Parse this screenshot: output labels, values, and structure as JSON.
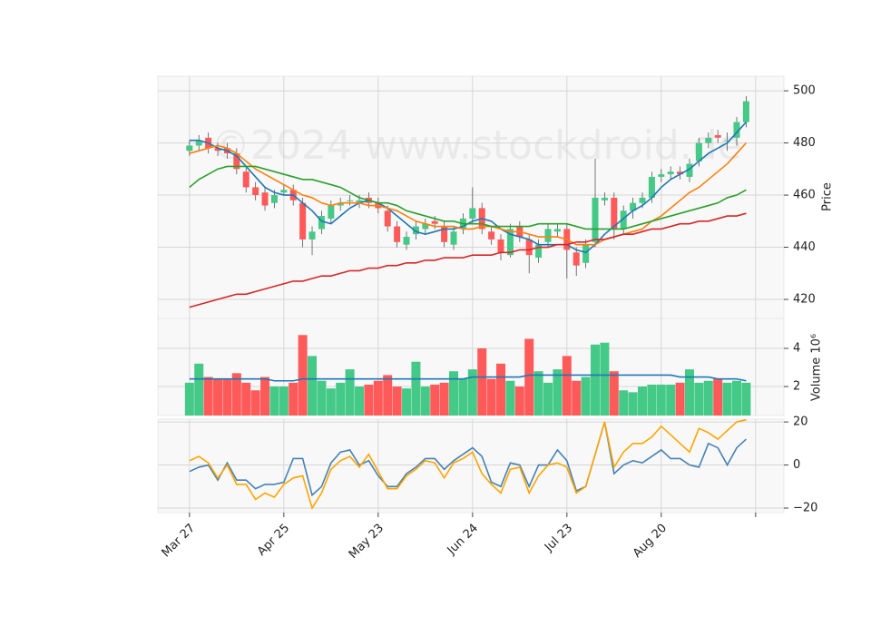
{
  "chart_data": {
    "type": "candlestick",
    "watermark": "©2024 www.stockdroid.de",
    "ylabel": "Price",
    "up_color": "#44c987",
    "down_color": "#ff5a5a",
    "grid": true,
    "xlim": [
      -6.7,
      126
    ],
    "ylim": [
      412.7,
      505.6
    ],
    "yticks": [
      420,
      440,
      460,
      480,
      500
    ],
    "xticks": [
      {
        "value": 0,
        "label": "Mar 27"
      },
      {
        "value": 20,
        "label": "Apr 25"
      },
      {
        "value": 40,
        "label": "May 23"
      },
      {
        "value": 60,
        "label": "Jun 24"
      },
      {
        "value": 80,
        "label": "Jul 23"
      },
      {
        "value": 100,
        "label": "Aug 20"
      },
      {
        "value": 120,
        "label": null
      }
    ],
    "x": [
      0,
      2,
      4,
      6,
      8,
      10,
      12,
      14,
      16,
      18,
      20,
      22,
      24,
      26,
      28,
      30,
      32,
      34,
      36,
      38,
      40,
      42,
      44,
      46,
      48,
      50,
      52,
      54,
      56,
      58,
      60,
      62,
      64,
      66,
      68,
      70,
      72,
      74,
      76,
      78,
      80,
      82,
      84,
      86,
      88,
      90,
      92,
      94,
      96,
      98,
      100,
      102,
      104,
      106,
      108,
      110,
      112,
      114,
      116,
      118
    ],
    "open": [
      477,
      479,
      482,
      478,
      478,
      476,
      469,
      463,
      461,
      457,
      461,
      462,
      457,
      443,
      447,
      451,
      456,
      458,
      457,
      459,
      457,
      454,
      448,
      441,
      445,
      447,
      450,
      448,
      441,
      447,
      451,
      455,
      446,
      443,
      437,
      448,
      443,
      436,
      442,
      446,
      447,
      438,
      434,
      442,
      458,
      459,
      447,
      454,
      457,
      459,
      467,
      468,
      469,
      467,
      473,
      480,
      483,
      481,
      482,
      488
    ],
    "high": [
      481,
      483,
      484,
      480,
      480,
      478,
      471,
      465,
      463,
      462,
      464,
      464,
      459,
      448,
      454,
      458,
      459,
      460,
      460,
      461,
      459,
      456,
      450,
      446,
      450,
      451,
      452,
      450,
      448,
      453,
      463,
      457,
      448,
      445,
      449,
      450,
      445,
      443,
      449,
      449,
      449,
      440,
      443,
      474,
      461,
      461,
      456,
      459,
      461,
      469,
      470,
      471,
      471,
      474,
      482,
      484,
      485,
      484,
      490,
      498
    ],
    "low": [
      475,
      477,
      476,
      475,
      474,
      468,
      461,
      458,
      454,
      455,
      460,
      456,
      440,
      437,
      445,
      449,
      454,
      456,
      455,
      455,
      453,
      446,
      440,
      439,
      443,
      445,
      447,
      440,
      439,
      445,
      449,
      445,
      441,
      435,
      436,
      442,
      430,
      434,
      440,
      444,
      428,
      429,
      432,
      440,
      456,
      443,
      445,
      451,
      455,
      457,
      465,
      466,
      466,
      465,
      471,
      478,
      480,
      477,
      479,
      486
    ],
    "close": [
      479,
      481,
      478,
      477,
      476,
      470,
      463,
      460,
      456,
      460,
      462,
      458,
      443,
      446,
      452,
      456,
      457,
      458,
      458,
      457,
      455,
      448,
      442,
      444,
      448,
      449,
      449,
      442,
      446,
      451,
      455,
      447,
      443,
      438,
      447,
      444,
      437,
      441,
      447,
      447,
      439,
      433,
      441,
      459,
      459,
      447,
      454,
      457,
      459,
      467,
      468,
      469,
      468,
      472,
      480,
      482,
      482,
      481,
      488,
      496
    ],
    "series": [
      {
        "color": "#1f77b4",
        "values": [
          481,
          481,
          480,
          478,
          477,
          475,
          471,
          467,
          463,
          461,
          460,
          460,
          457,
          454,
          450,
          449,
          452,
          455,
          457,
          458,
          457,
          455,
          452,
          449,
          446,
          445,
          446,
          447,
          447,
          448,
          450,
          451,
          450,
          447,
          445,
          444,
          443,
          441,
          441,
          441,
          441,
          439,
          438,
          441,
          445,
          448,
          451,
          454,
          456,
          459,
          463,
          466,
          468,
          470,
          473,
          476,
          478,
          480,
          484,
          488
        ]
      },
      {
        "color": "#ff7f0e",
        "values": [
          476,
          477,
          478,
          479,
          478,
          476,
          473,
          470,
          468,
          466,
          464,
          462,
          460,
          459,
          457,
          456,
          457,
          457,
          457,
          456,
          456,
          455,
          454,
          452,
          450,
          449,
          448,
          448,
          448,
          447,
          447,
          448,
          448,
          447,
          446,
          446,
          445,
          444,
          444,
          444,
          443,
          441,
          441,
          441,
          443,
          444,
          445,
          446,
          447,
          450,
          452,
          455,
          458,
          461,
          463,
          466,
          469,
          472,
          476,
          480
        ]
      },
      {
        "color": "#2ca02c",
        "values": [
          463,
          466,
          468,
          470,
          471,
          471,
          471,
          471,
          470,
          469,
          468,
          467,
          466,
          466,
          465,
          464,
          463,
          461,
          459,
          458,
          457,
          457,
          456,
          454,
          453,
          452,
          451,
          450,
          450,
          449,
          449,
          449,
          448,
          448,
          448,
          448,
          448,
          449,
          449,
          449,
          449,
          448,
          447,
          447,
          447,
          447,
          447,
          448,
          449,
          450,
          451,
          452,
          453,
          454,
          455,
          456,
          457,
          459,
          460,
          462
        ]
      },
      {
        "color": "#d62728",
        "values": [
          417,
          418,
          419,
          420,
          421,
          422,
          422,
          423,
          424,
          425,
          426,
          427,
          427,
          428,
          429,
          429,
          430,
          431,
          431,
          432,
          432,
          433,
          433,
          434,
          434,
          435,
          435,
          436,
          436,
          436,
          437,
          437,
          437,
          438,
          438,
          439,
          439,
          440,
          440,
          441,
          441,
          442,
          442,
          443,
          443,
          444,
          445,
          445,
          446,
          447,
          447,
          448,
          449,
          449,
          450,
          450,
          451,
          452,
          452,
          453
        ]
      }
    ],
    "volume": {
      "ylabel": "Volume  10⁶",
      "ylim": [
        0.48,
        5.57
      ],
      "yticks": [
        2,
        4
      ],
      "values": [
        2.2,
        3.2,
        2.5,
        2.4,
        2.4,
        2.7,
        2.2,
        1.8,
        2.5,
        2.0,
        2.0,
        2.2,
        4.7,
        3.6,
        2.3,
        1.9,
        2.2,
        2.9,
        2.0,
        2.1,
        2.3,
        2.6,
        2.0,
        1.9,
        3.3,
        2.0,
        2.1,
        2.2,
        2.8,
        2.4,
        2.9,
        4.0,
        2.4,
        3.2,
        2.3,
        2.0,
        4.5,
        2.8,
        2.2,
        2.9,
        3.6,
        2.3,
        2.5,
        4.2,
        4.3,
        2.8,
        1.8,
        1.7,
        2.0,
        2.1,
        2.1,
        2.1,
        2.2,
        2.9,
        2.2,
        2.3,
        2.4,
        2.2,
        2.3,
        2.2
      ],
      "ma": {
        "color": "#1f77b4",
        "values": [
          2.4,
          2.4,
          2.4,
          2.4,
          2.4,
          2.4,
          2.4,
          2.4,
          2.4,
          2.3,
          2.3,
          2.3,
          2.4,
          2.4,
          2.4,
          2.4,
          2.4,
          2.4,
          2.4,
          2.4,
          2.4,
          2.4,
          2.4,
          2.4,
          2.4,
          2.4,
          2.4,
          2.4,
          2.4,
          2.4,
          2.5,
          2.5,
          2.5,
          2.5,
          2.5,
          2.5,
          2.6,
          2.6,
          2.6,
          2.6,
          2.6,
          2.6,
          2.6,
          2.6,
          2.6,
          2.6,
          2.6,
          2.6,
          2.6,
          2.6,
          2.6,
          2.6,
          2.5,
          2.5,
          2.5,
          2.5,
          2.4,
          2.4,
          2.4,
          2.3
        ]
      }
    },
    "oscillator": {
      "ylim": [
        -22.1,
        21.3
      ],
      "yticks": [
        {
          "value": -20,
          "label": "−20"
        },
        0,
        20
      ],
      "series": [
        {
          "color": "#4682b4",
          "values": [
            -3,
            -1,
            0,
            -7,
            1,
            -7,
            -7,
            -11,
            -9,
            -9,
            -8,
            3,
            3,
            -14,
            -10,
            1,
            6,
            7,
            0,
            2,
            -5,
            -10,
            -10,
            -4,
            -1,
            3,
            3,
            -2,
            2,
            5,
            8,
            4,
            -8,
            -10,
            1,
            0,
            -10,
            0,
            0,
            7,
            2,
            -12,
            -10,
            5,
            20,
            -4,
            0,
            2,
            1,
            4,
            7,
            3,
            3,
            0,
            -1,
            10,
            8,
            0,
            8,
            12
          ]
        },
        {
          "color": "#ffa500",
          "values": [
            2,
            4,
            1,
            -6,
            0,
            -9,
            -9,
            -16,
            -13,
            -15,
            -9,
            -6,
            -5,
            -20,
            -13,
            -2,
            2,
            4,
            -1,
            5,
            -3,
            -11,
            -11,
            -5,
            -2,
            2,
            1,
            -6,
            1,
            3,
            6,
            -4,
            -9,
            -13,
            -2,
            -1,
            -13,
            -5,
            0,
            1,
            -1,
            -13,
            -10,
            5,
            20,
            -1,
            6,
            10,
            10,
            13,
            18,
            14,
            10,
            6,
            17,
            15,
            12,
            16,
            20,
            21
          ]
        }
      ]
    }
  }
}
